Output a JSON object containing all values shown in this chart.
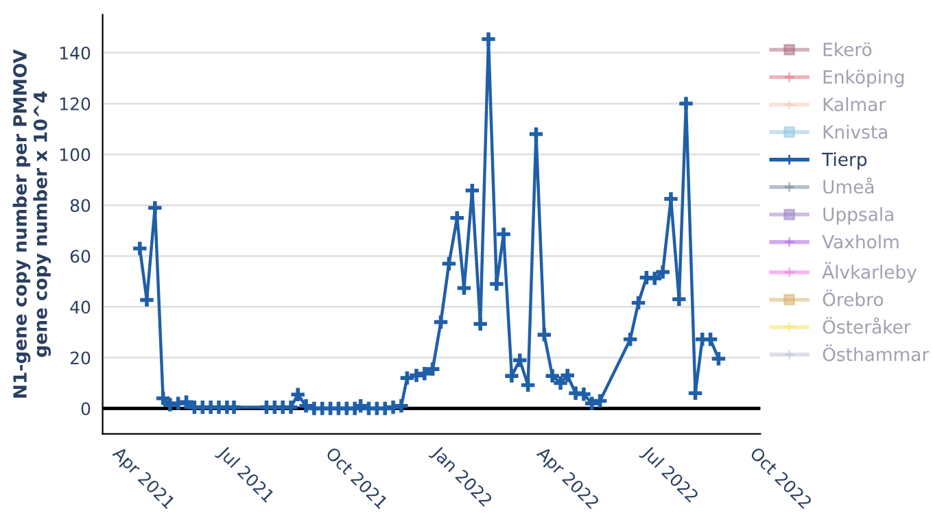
{
  "chart_data": {
    "type": "line",
    "ylabel": "N1-gene copy number per PMMOV\ngene copy number x 10^4",
    "x": [
      "2021-04-17",
      "2021-04-23",
      "2021-04-30",
      "2021-05-07",
      "2021-05-13",
      "2021-05-20",
      "2021-05-27",
      "2021-06-03",
      "2021-06-10",
      "2021-06-17",
      "2021-06-24",
      "2021-07-01",
      "2021-07-07",
      "2021-08-04",
      "2021-08-11",
      "2021-08-18",
      "2021-08-25",
      "2021-08-31",
      "2021-09-07",
      "2021-09-14",
      "2021-09-21",
      "2021-09-28",
      "2021-10-05",
      "2021-10-12",
      "2021-10-19",
      "2021-10-24",
      "2021-10-31",
      "2021-11-07",
      "2021-11-14",
      "2021-11-21",
      "2021-11-28",
      "2021-12-03",
      "2021-12-11",
      "2021-12-18",
      "2021-12-25",
      "2022-01-01",
      "2022-01-08",
      "2022-01-15",
      "2022-01-21",
      "2022-01-28",
      "2022-02-04",
      "2022-02-11",
      "2022-02-18",
      "2022-02-24",
      "2022-03-03",
      "2022-03-10",
      "2022-03-17",
      "2022-03-24",
      "2022-03-31",
      "2022-04-07",
      "2022-04-14",
      "2022-04-20",
      "2022-04-27",
      "2022-05-04",
      "2022-05-11",
      "2022-05-18",
      "2022-06-13",
      "2022-06-20",
      "2022-06-27",
      "2022-07-04",
      "2022-07-11",
      "2022-07-18",
      "2022-07-25",
      "2022-07-31",
      "2022-08-08",
      "2022-08-14",
      "2022-08-21",
      "2022-08-28"
    ],
    "series": [
      {
        "name": "Ekerö",
        "color": "#a86478",
        "marker": "square",
        "values": [
          null,
          null,
          null,
          null,
          null,
          null,
          null,
          null,
          null,
          null,
          null,
          null,
          null,
          null,
          null,
          null,
          null,
          null,
          null,
          null,
          null,
          null,
          null,
          null,
          null,
          null,
          null,
          null,
          null,
          null,
          null,
          null,
          null,
          null,
          null,
          null,
          null,
          null,
          null,
          null,
          null,
          null,
          null,
          null,
          null,
          null,
          null,
          null,
          null,
          null,
          null,
          null,
          null,
          null,
          null,
          null,
          null,
          null,
          null,
          null,
          null,
          null,
          null,
          null,
          null,
          null,
          null,
          null
        ]
      },
      {
        "name": "Enköping",
        "color": "#e0687c",
        "marker": "cross",
        "values": [
          null,
          null,
          null,
          null,
          null,
          null,
          null,
          null,
          null,
          null,
          null,
          null,
          null,
          null,
          null,
          null,
          null,
          null,
          null,
          null,
          null,
          null,
          null,
          null,
          null,
          null,
          null,
          null,
          null,
          null,
          null,
          null,
          null,
          null,
          null,
          null,
          null,
          null,
          null,
          null,
          null,
          null,
          null,
          null,
          null,
          null,
          null,
          null,
          null,
          null,
          null,
          null,
          null,
          null,
          null,
          null,
          null,
          null,
          null,
          null,
          null,
          null,
          null,
          null,
          null,
          null,
          null,
          null
        ]
      },
      {
        "name": "Kalmar",
        "color": "#f4c4b4",
        "marker": "cross",
        "values": [
          null,
          null,
          null,
          null,
          null,
          null,
          null,
          null,
          null,
          null,
          null,
          null,
          null,
          null,
          null,
          null,
          null,
          null,
          null,
          null,
          null,
          null,
          null,
          null,
          null,
          null,
          null,
          null,
          null,
          null,
          null,
          null,
          null,
          null,
          null,
          null,
          null,
          null,
          null,
          null,
          null,
          null,
          null,
          null,
          null,
          null,
          null,
          null,
          null,
          null,
          null,
          null,
          null,
          null,
          null,
          null,
          null,
          null,
          null,
          null,
          null,
          null,
          null,
          null,
          null,
          null,
          null,
          null
        ]
      },
      {
        "name": "Knivsta",
        "color": "#8cc4de",
        "marker": "square",
        "values": [
          null,
          null,
          null,
          null,
          null,
          null,
          null,
          null,
          null,
          null,
          null,
          null,
          null,
          null,
          null,
          null,
          null,
          null,
          null,
          null,
          null,
          null,
          null,
          null,
          null,
          null,
          null,
          null,
          null,
          null,
          null,
          null,
          null,
          null,
          null,
          null,
          null,
          null,
          null,
          null,
          null,
          null,
          null,
          null,
          null,
          null,
          null,
          null,
          null,
          null,
          null,
          null,
          null,
          null,
          null,
          null,
          null,
          null,
          null,
          null,
          null,
          null,
          null,
          null,
          null,
          null,
          null,
          null
        ]
      },
      {
        "name": "Tierp",
        "color": "#1f5fa8",
        "marker": "cross",
        "values": [
          63,
          42.7,
          79,
          4,
          1.5,
          2,
          2.5,
          0.5,
          0.5,
          0.5,
          0.5,
          0.5,
          0.5,
          0.5,
          0.5,
          0.5,
          0.5,
          5.5,
          1,
          0,
          0,
          0,
          0,
          0,
          0,
          1,
          0,
          0,
          0,
          0.5,
          1,
          12,
          13,
          13.7,
          15.5,
          34,
          57,
          75,
          47.4,
          85.8,
          33.3,
          145.4,
          49,
          68.6,
          12.8,
          19,
          9.2,
          108,
          29,
          12.8,
          10,
          13,
          6,
          5.6,
          2,
          3,
          27.2,
          41.6,
          51.5,
          51.2,
          53.7,
          82.5,
          43,
          120,
          6,
          27.2,
          27.2,
          19.6
        ]
      },
      {
        "name": "Umeå",
        "color": "#6b7f96",
        "marker": "cross",
        "values": [
          null,
          null,
          null,
          null,
          null,
          null,
          null,
          null,
          null,
          null,
          null,
          null,
          null,
          null,
          null,
          null,
          null,
          null,
          null,
          null,
          null,
          null,
          null,
          null,
          null,
          null,
          null,
          null,
          null,
          null,
          null,
          null,
          null,
          null,
          null,
          null,
          null,
          null,
          null,
          null,
          null,
          null,
          null,
          null,
          null,
          null,
          null,
          null,
          null,
          null,
          null,
          null,
          null,
          null,
          null,
          null,
          null,
          null,
          null,
          null,
          null,
          null,
          null,
          null,
          null,
          null,
          null,
          null
        ]
      },
      {
        "name": "Uppsala",
        "color": "#9a7cc4",
        "marker": "square",
        "values": [
          null,
          null,
          null,
          null,
          null,
          null,
          null,
          null,
          null,
          null,
          null,
          null,
          null,
          null,
          null,
          null,
          null,
          null,
          null,
          null,
          null,
          null,
          null,
          null,
          null,
          null,
          null,
          null,
          null,
          null,
          null,
          null,
          null,
          null,
          null,
          null,
          null,
          null,
          null,
          null,
          null,
          null,
          null,
          null,
          null,
          null,
          null,
          null,
          null,
          null,
          null,
          null,
          null,
          null,
          null,
          null,
          null,
          null,
          null,
          null,
          null,
          null,
          null,
          null,
          null,
          null,
          null,
          null
        ]
      },
      {
        "name": "Vaxholm",
        "color": "#a855e0",
        "marker": "cross",
        "values": [
          null,
          null,
          null,
          null,
          null,
          null,
          null,
          null,
          null,
          null,
          null,
          null,
          null,
          null,
          null,
          null,
          null,
          null,
          null,
          null,
          null,
          null,
          null,
          null,
          null,
          null,
          null,
          null,
          null,
          null,
          null,
          null,
          null,
          null,
          null,
          null,
          null,
          null,
          null,
          null,
          null,
          null,
          null,
          null,
          null,
          null,
          null,
          null,
          null,
          null,
          null,
          null,
          null,
          null,
          null,
          null,
          null,
          null,
          null,
          null,
          null,
          null,
          null,
          null,
          null,
          null,
          null,
          null
        ]
      },
      {
        "name": "Älvkarleby",
        "color": "#f06ce0",
        "marker": "cross",
        "values": [
          null,
          null,
          null,
          null,
          null,
          null,
          null,
          null,
          null,
          null,
          null,
          null,
          null,
          null,
          null,
          null,
          null,
          null,
          null,
          null,
          null,
          null,
          null,
          null,
          null,
          null,
          null,
          null,
          null,
          null,
          null,
          null,
          null,
          null,
          null,
          null,
          null,
          null,
          null,
          null,
          null,
          null,
          null,
          null,
          null,
          null,
          null,
          null,
          null,
          null,
          null,
          null,
          null,
          null,
          null,
          null,
          null,
          null,
          null,
          null,
          null,
          null,
          null,
          null,
          null,
          null,
          null,
          null
        ]
      },
      {
        "name": "Örebro",
        "color": "#d4b060",
        "marker": "square",
        "values": [
          null,
          null,
          null,
          null,
          null,
          null,
          null,
          null,
          null,
          null,
          null,
          null,
          null,
          null,
          null,
          null,
          null,
          null,
          null,
          null,
          null,
          null,
          null,
          null,
          null,
          null,
          null,
          null,
          null,
          null,
          null,
          null,
          null,
          null,
          null,
          null,
          null,
          null,
          null,
          null,
          null,
          null,
          null,
          null,
          null,
          null,
          null,
          null,
          null,
          null,
          null,
          null,
          null,
          null,
          null,
          null,
          null,
          null,
          null,
          null,
          null,
          null,
          null,
          null,
          null,
          null,
          null,
          null
        ]
      },
      {
        "name": "Österåker",
        "color": "#f8e050",
        "marker": "cross",
        "values": [
          null,
          null,
          null,
          null,
          null,
          null,
          null,
          null,
          null,
          null,
          null,
          null,
          null,
          null,
          null,
          null,
          null,
          null,
          null,
          null,
          null,
          null,
          null,
          null,
          null,
          null,
          null,
          null,
          null,
          null,
          null,
          null,
          null,
          null,
          null,
          null,
          null,
          null,
          null,
          null,
          null,
          null,
          null,
          null,
          null,
          null,
          null,
          null,
          null,
          null,
          null,
          null,
          null,
          null,
          null,
          null,
          null,
          null,
          null,
          null,
          null,
          null,
          null,
          null,
          null,
          null,
          null,
          null
        ]
      },
      {
        "name": "Östhammar",
        "color": "#b8bcd0",
        "marker": "cross",
        "values": [
          null,
          null,
          null,
          null,
          null,
          null,
          null,
          null,
          null,
          null,
          null,
          null,
          null,
          null,
          null,
          null,
          null,
          null,
          null,
          null,
          null,
          null,
          null,
          null,
          null,
          null,
          null,
          null,
          null,
          null,
          null,
          null,
          null,
          null,
          null,
          null,
          null,
          null,
          null,
          null,
          null,
          null,
          null,
          null,
          null,
          null,
          null,
          null,
          null,
          null,
          null,
          null,
          null,
          null,
          null,
          null,
          null,
          null,
          null,
          null,
          null,
          null,
          null,
          null,
          null,
          null,
          null,
          null
        ]
      }
    ],
    "xlim": [
      "2021-03-16",
      "2022-10-03"
    ],
    "xticks": [
      {
        "value": "2021-04-01",
        "label": "Apr 2021"
      },
      {
        "value": "2021-07-01",
        "label": "Jul 2021"
      },
      {
        "value": "2021-10-01",
        "label": "Oct 2021"
      },
      {
        "value": "2022-01-01",
        "label": "Jan 2022"
      },
      {
        "value": "2022-04-01",
        "label": "Apr 2022"
      },
      {
        "value": "2022-07-01",
        "label": "Jul 2022"
      },
      {
        "value": "2022-10-01",
        "label": "Oct 2022"
      }
    ],
    "ylim": [
      -10,
      155
    ],
    "yticks": [
      0,
      20,
      40,
      60,
      80,
      100,
      120,
      140
    ],
    "ref_lines": [
      {
        "axis": "y",
        "value": 0,
        "color": "#000000"
      }
    ],
    "grid": "y",
    "legend": "right",
    "line_style": "solid"
  }
}
